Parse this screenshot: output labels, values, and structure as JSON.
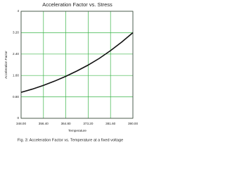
{
  "chart_data": {
    "type": "line",
    "title": "Acceleration Factor vs. Stress",
    "xlabel": "Temperature",
    "ylabel": "Acceleration Factor",
    "caption": "Fig. 3:  Acceleration Factor vs. Temperature at a fixed voltage",
    "x": [
      348,
      352.2,
      356.4,
      360.6,
      364.8,
      369,
      373.2,
      377.4,
      381.6,
      385.8,
      390
    ],
    "series": [
      {
        "name": "Acceleration Factor",
        "color": "#111111",
        "values": [
          0.97,
          1.09,
          1.23,
          1.39,
          1.57,
          1.77,
          1.99,
          2.24,
          2.53,
          2.85,
          3.2
        ]
      }
    ],
    "xlim": [
      348,
      390
    ],
    "xticks": [
      {
        "value": 348,
        "label": "348.00"
      },
      {
        "value": 356.4,
        "label": "356.40"
      },
      {
        "value": 364.8,
        "label": "364.80"
      },
      {
        "value": 373.2,
        "label": "373.20"
      },
      {
        "value": 381.6,
        "label": "381.60"
      },
      {
        "value": 390,
        "label": "390.00"
      }
    ],
    "ylim": [
      0,
      4
    ],
    "yticks": [
      0,
      {
        "value": 0.8,
        "label": "0.80"
      },
      {
        "value": 1.6,
        "label": "1.60"
      },
      {
        "value": 2.4,
        "label": "2.40"
      },
      {
        "value": 3.2,
        "label": "3.20"
      },
      4
    ],
    "grid": true,
    "grid_color": "#3cb54a"
  }
}
